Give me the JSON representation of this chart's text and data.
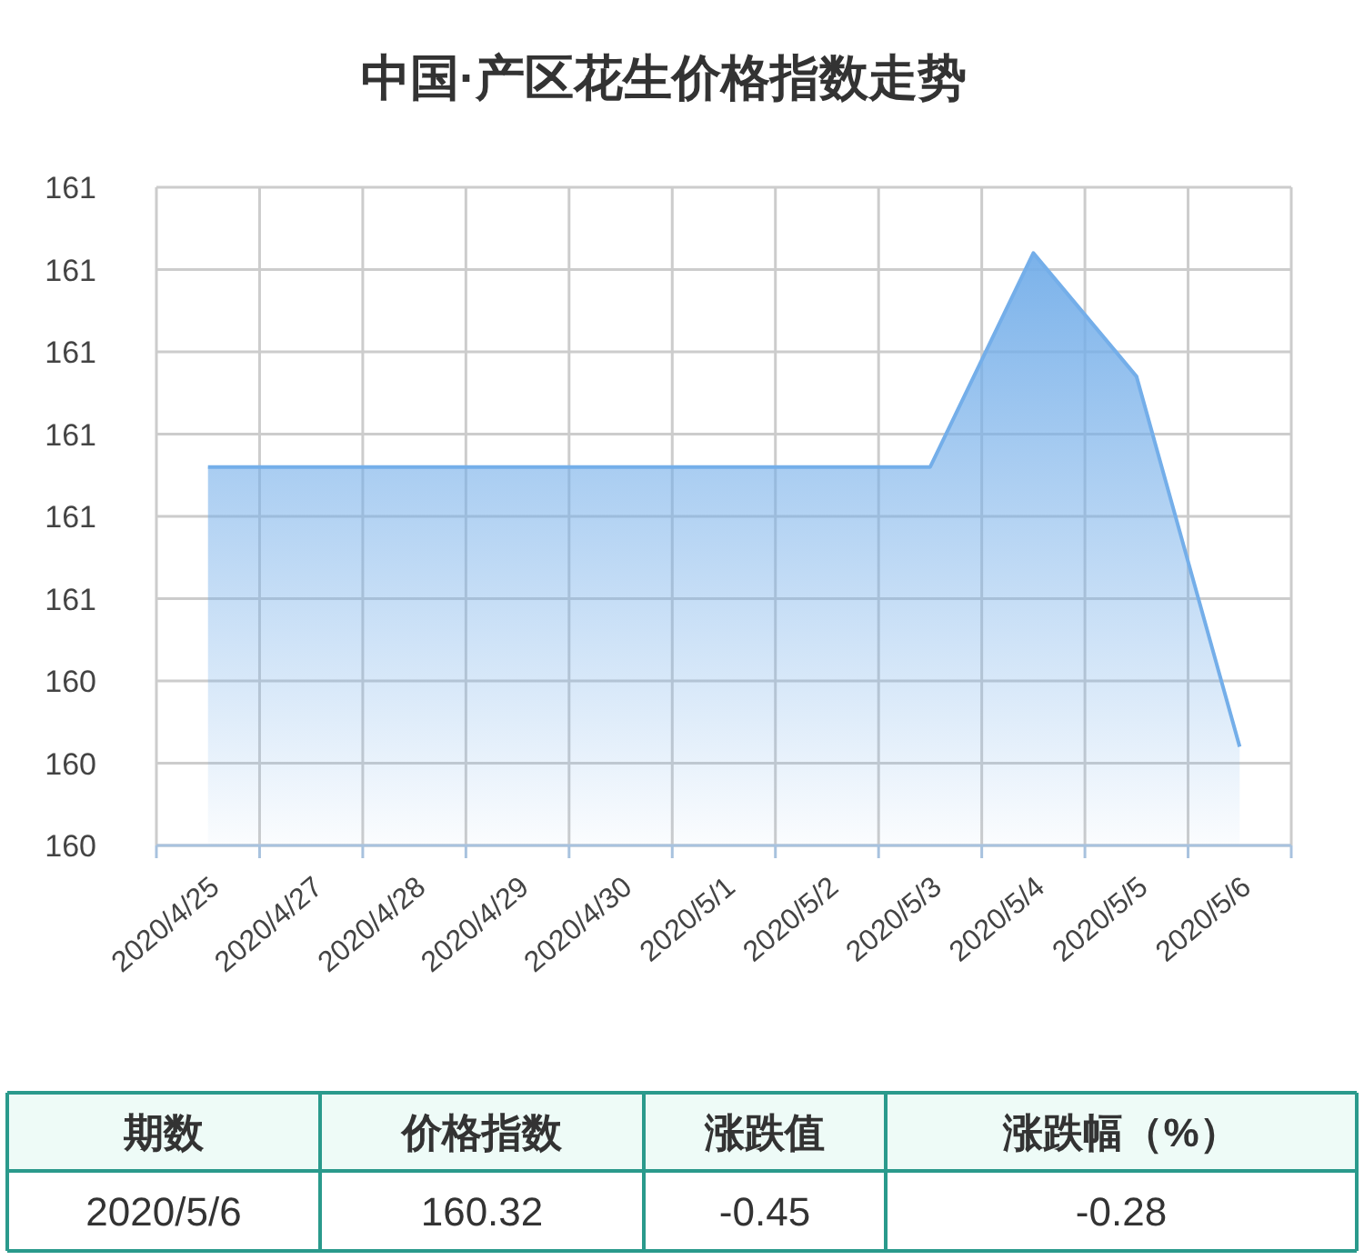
{
  "chart_data": {
    "type": "area",
    "title": "中国·产区花生价格指数走势",
    "categories": [
      "2020/4/25",
      "2020/4/27",
      "2020/4/28",
      "2020/4/29",
      "2020/4/30",
      "2020/5/1",
      "2020/5/2",
      "2020/5/3",
      "2020/5/4",
      "2020/5/5",
      "2020/5/6"
    ],
    "series": [
      {
        "color": "#74aee9",
        "values": [
          160.66,
          160.66,
          160.66,
          160.66,
          160.66,
          160.66,
          160.66,
          160.66,
          160.92,
          160.77,
          160.32
        ]
      }
    ],
    "ylim": [
      160.2,
      161.0
    ],
    "yticks": [
      {
        "value": 160.2,
        "label": "160"
      },
      {
        "value": 160.3,
        "label": "160"
      },
      {
        "value": 160.4,
        "label": "160"
      },
      {
        "value": 160.5,
        "label": "161"
      },
      {
        "value": 160.6,
        "label": "161"
      },
      {
        "value": 160.7,
        "label": "161"
      },
      {
        "value": 160.8,
        "label": "161"
      },
      {
        "value": 160.9,
        "label": "161"
      },
      {
        "value": 161.0,
        "label": "161"
      }
    ],
    "grid": true,
    "annotations": [
      "期数",
      "价格指数",
      "涨跌值",
      "涨跌幅（%）",
      "2020/5/6",
      "160.32",
      "-0.45",
      "-0.28"
    ]
  }
}
